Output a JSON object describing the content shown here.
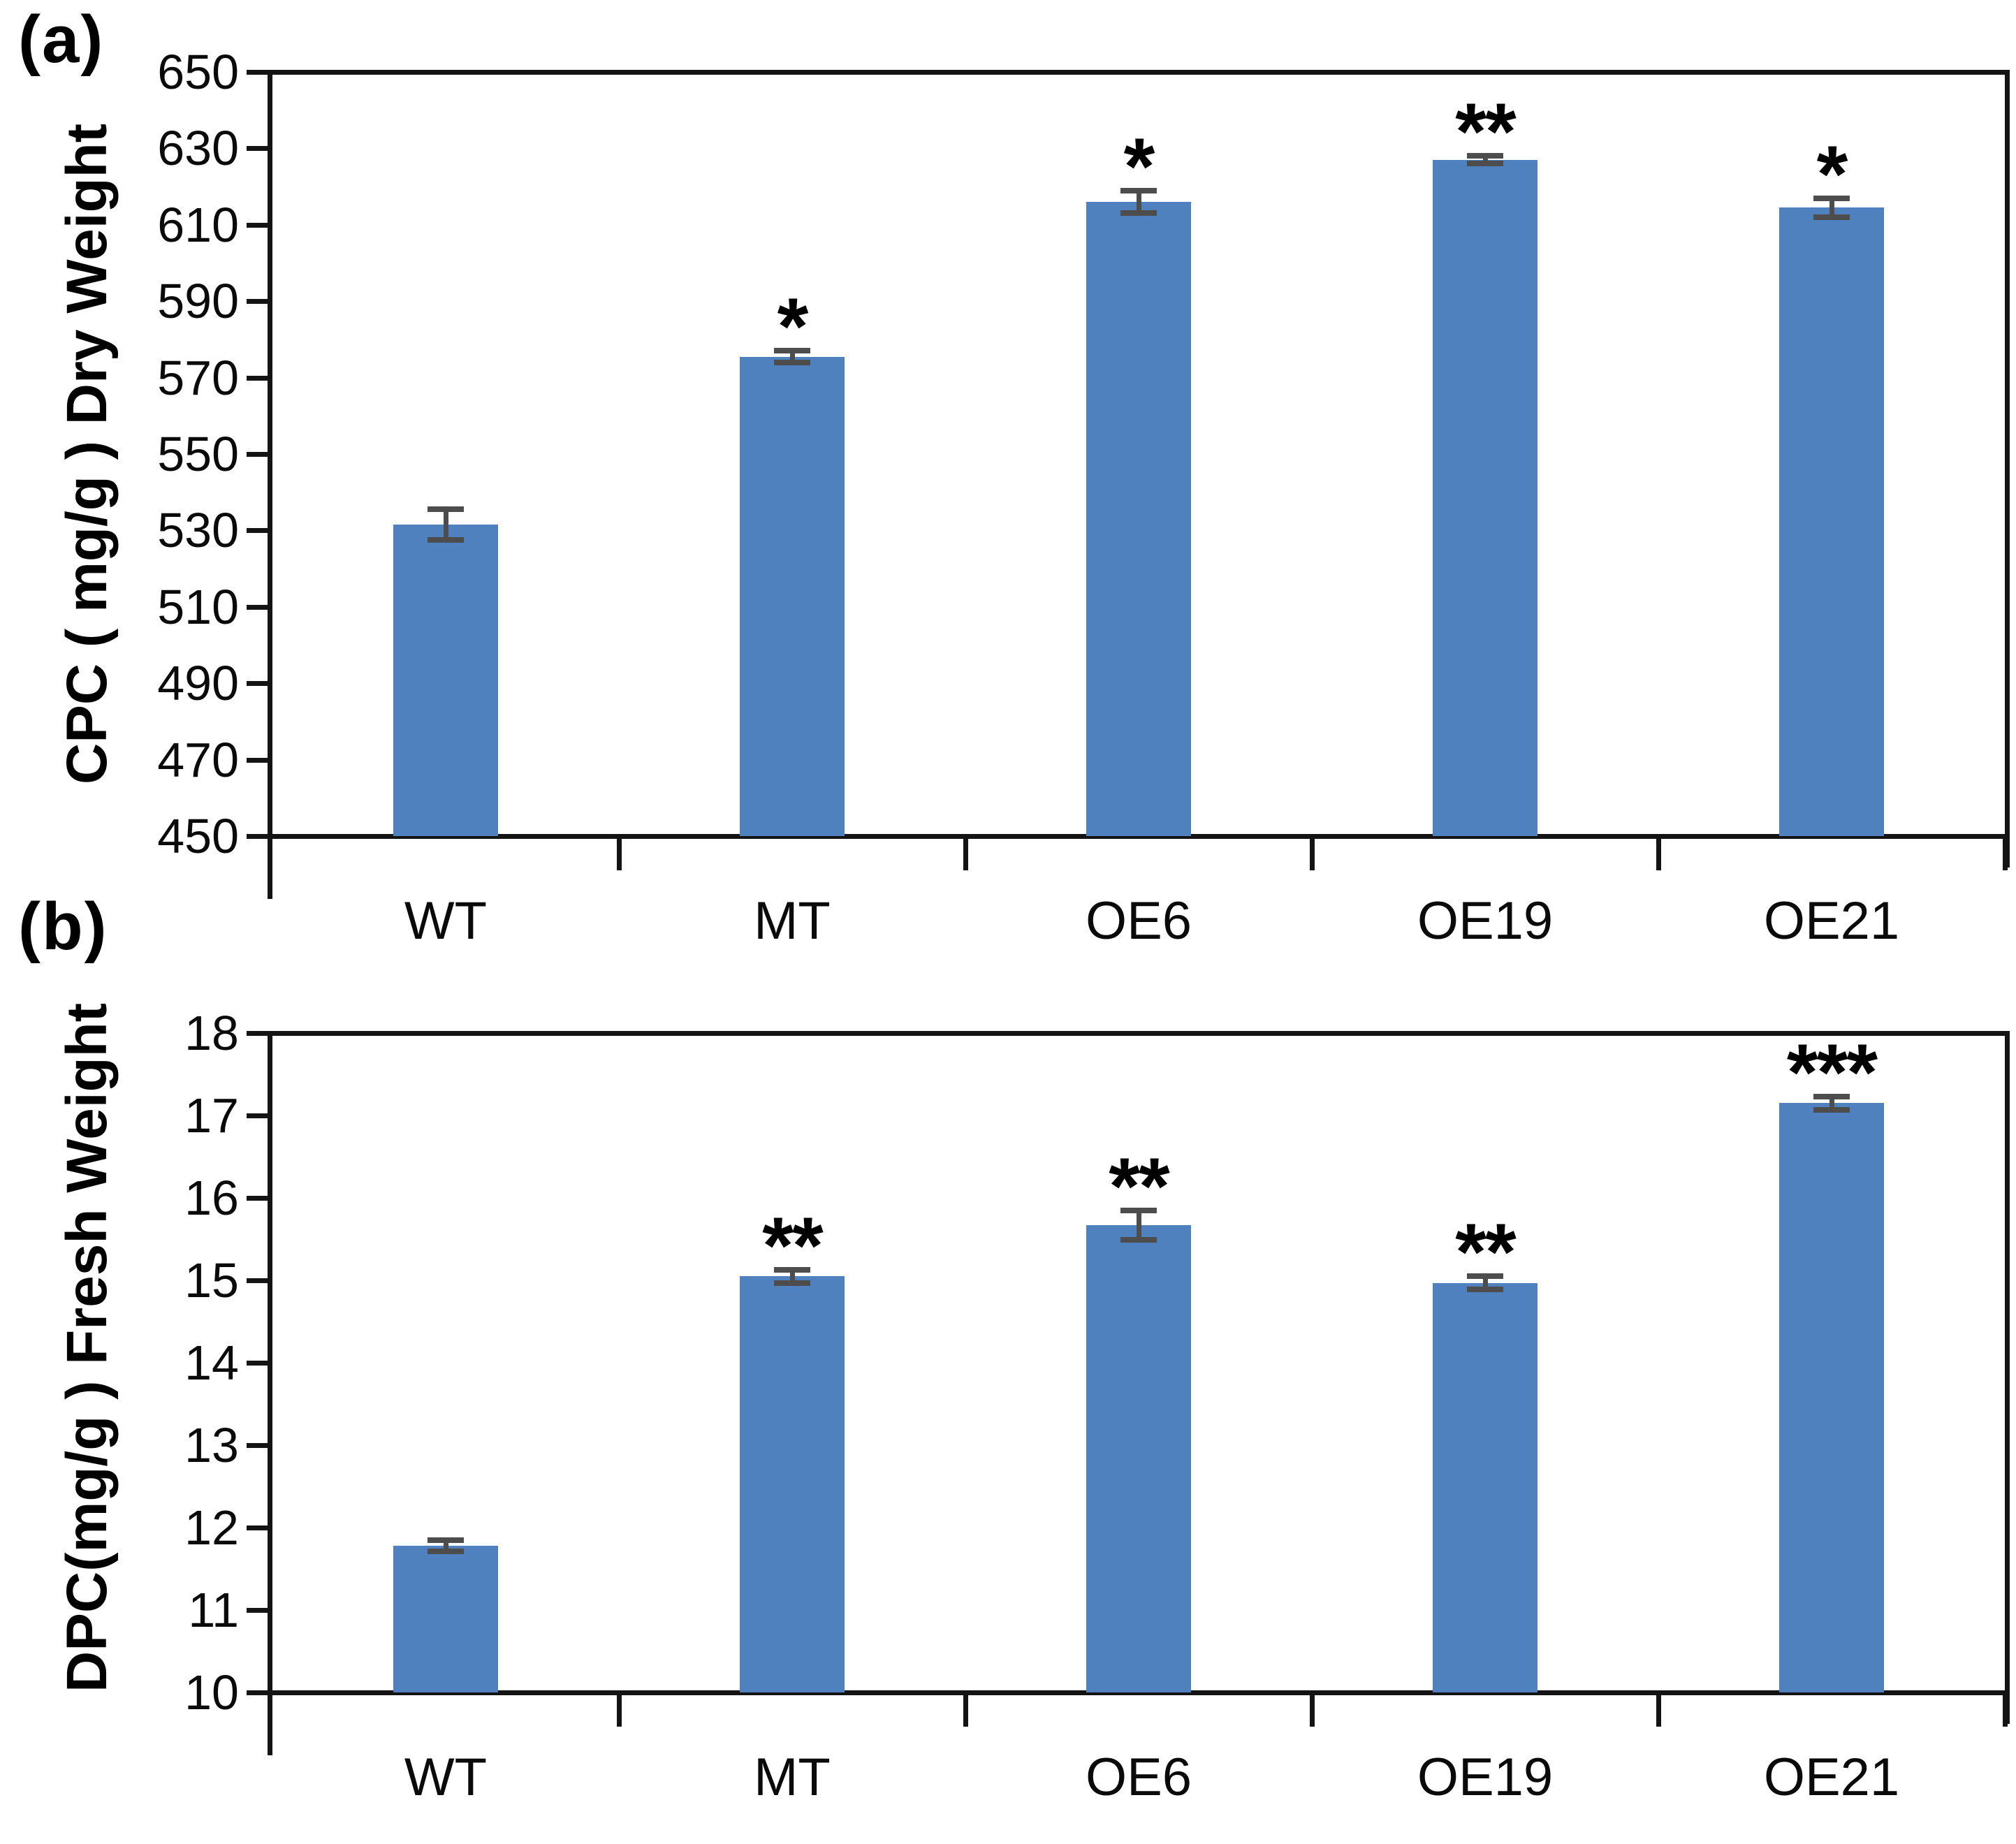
{
  "figure": {
    "background": "#ffffff",
    "bar_color": "#4e81bd",
    "error_bar_color": "#4d4d4d",
    "axis_color": "#141414"
  },
  "chart_data": [
    {
      "type": "bar",
      "panel_label": "(a)",
      "title": "",
      "xlabel": "",
      "ylabel": "CPC ( mg/g ) Dry Weight",
      "categories": [
        "WT",
        "MT",
        "OE6",
        "OE19",
        "OE21"
      ],
      "values": [
        531.5,
        575.5,
        616,
        627,
        614.5
      ],
      "errors": [
        4,
        1.5,
        3,
        1,
        2.5
      ],
      "significance": [
        "",
        "*",
        "*",
        "**",
        "*"
      ],
      "ylim": [
        450,
        650
      ],
      "ytick_step": 20,
      "grid": false,
      "legend_position": "none"
    },
    {
      "type": "bar",
      "panel_label": "(b)",
      "title": "",
      "xlabel": "",
      "ylabel": "DPC(mg/g ) Fresh Weight",
      "categories": [
        "WT",
        "MT",
        "OE6",
        "OE19",
        "OE21"
      ],
      "values": [
        11.78,
        15.05,
        15.67,
        14.97,
        17.15
      ],
      "errors": [
        0.07,
        0.08,
        0.18,
        0.08,
        0.08
      ],
      "significance": [
        "",
        "**",
        "**",
        "**",
        "***"
      ],
      "ylim": [
        10,
        18
      ],
      "ytick_step": 1,
      "grid": false,
      "legend_position": "none"
    }
  ]
}
